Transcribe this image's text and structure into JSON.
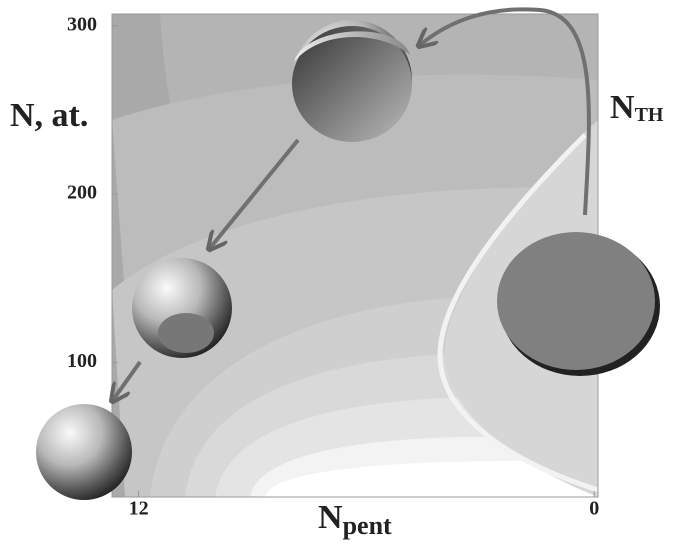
{
  "chart_data": {
    "type": "contour",
    "y_label": "N, at.",
    "x_label": {
      "main": "N",
      "sub": "pent"
    },
    "curve_label": {
      "main": "N",
      "sub": "TH"
    },
    "xlim": [
      12.7,
      -0.1
    ],
    "xticks": [
      12,
      0
    ],
    "ylim": [
      20,
      307
    ],
    "yticks": [
      100,
      200,
      300
    ],
    "grid": false
  }
}
